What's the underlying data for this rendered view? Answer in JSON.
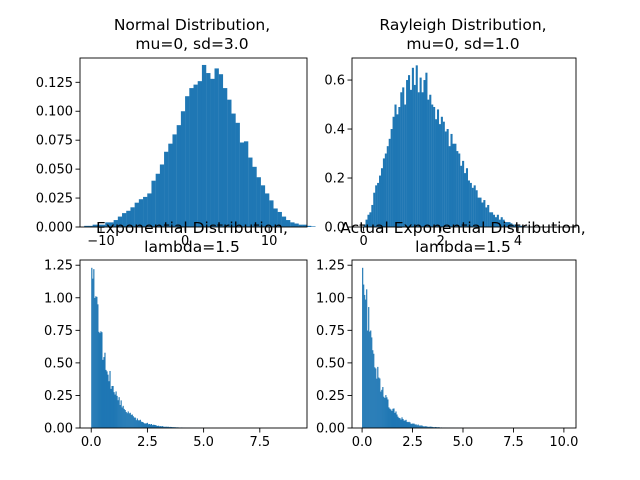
{
  "chart_data": [
    {
      "type": "bar",
      "title": "Normal Distribution,\nmu=0, sd=3.0",
      "xlabel": "",
      "ylabel": "",
      "xlim": [
        -12.5,
        14.5
      ],
      "ylim": [
        0,
        0.146
      ],
      "xticks": [
        -10,
        0,
        10
      ],
      "xtick_labels": [
        "−10",
        "0",
        "10"
      ],
      "yticks": [
        0,
        0.025,
        0.05,
        0.075,
        0.1,
        0.125
      ],
      "ytick_labels": [
        "0.000",
        "0.025",
        "0.050",
        "0.075",
        "0.100",
        "0.125"
      ],
      "color": "#1f77b4",
      "bin_start": -12,
      "bin_width": 0.5,
      "values": [
        0.001,
        0.001,
        0.002,
        0.002,
        0.002,
        0.004,
        0.004,
        0.006,
        0.009,
        0.012,
        0.014,
        0.017,
        0.021,
        0.024,
        0.026,
        0.029,
        0.04,
        0.046,
        0.054,
        0.065,
        0.072,
        0.08,
        0.088,
        0.1,
        0.113,
        0.12,
        0.123,
        0.126,
        0.14,
        0.133,
        0.128,
        0.137,
        0.132,
        0.12,
        0.11,
        0.098,
        0.09,
        0.073,
        0.074,
        0.06,
        0.052,
        0.043,
        0.036,
        0.029,
        0.023,
        0.016,
        0.013,
        0.009,
        0.006,
        0.004,
        0.003,
        0.002,
        0.002,
        0.001,
        0.0005
      ]
    },
    {
      "type": "bar",
      "title": "Rayleigh Distribution,\nmu=0, sd=1.0",
      "xlabel": "",
      "ylabel": "",
      "xlim": [
        -0.3,
        5.5
      ],
      "ylim": [
        0,
        0.69
      ],
      "xticks": [
        0,
        2,
        4
      ],
      "xtick_labels": [
        "0",
        "2",
        "4"
      ],
      "yticks": [
        0,
        0.2,
        0.4,
        0.6
      ],
      "ytick_labels": [
        "0.0",
        "0.2",
        "0.4",
        "0.6"
      ],
      "color": "#1f77b4",
      "bin_start": 0,
      "bin_width": 0.05,
      "values": [
        0.01,
        0.03,
        0.05,
        0.06,
        0.09,
        0.14,
        0.17,
        0.18,
        0.21,
        0.24,
        0.28,
        0.3,
        0.33,
        0.36,
        0.4,
        0.45,
        0.5,
        0.46,
        0.49,
        0.55,
        0.57,
        0.5,
        0.6,
        0.62,
        0.56,
        0.65,
        0.58,
        0.66,
        0.55,
        0.61,
        0.55,
        0.6,
        0.63,
        0.52,
        0.54,
        0.5,
        0.49,
        0.44,
        0.48,
        0.42,
        0.45,
        0.43,
        0.39,
        0.4,
        0.33,
        0.38,
        0.34,
        0.34,
        0.31,
        0.3,
        0.25,
        0.27,
        0.22,
        0.24,
        0.19,
        0.18,
        0.16,
        0.17,
        0.15,
        0.12,
        0.12,
        0.1,
        0.11,
        0.08,
        0.09,
        0.06,
        0.06,
        0.05,
        0.04,
        0.05,
        0.03,
        0.04,
        0.03,
        0.02,
        0.02,
        0.02,
        0.015,
        0.01,
        0.01,
        0.008,
        0.005,
        0.005,
        0.004,
        0.003,
        0.002,
        0.002,
        0.001,
        0.001,
        0.001,
        0.001
      ]
    },
    {
      "type": "bar",
      "title": "Exponential Distribution,\nlambda=1.5",
      "xlabel": "",
      "ylabel": "",
      "xlim": [
        -0.5,
        9.6
      ],
      "ylim": [
        0,
        1.29
      ],
      "xticks": [
        0,
        2.5,
        5,
        7.5
      ],
      "xtick_labels": [
        "0.0",
        "2.5",
        "5.0",
        "7.5"
      ],
      "yticks": [
        0,
        0.25,
        0.5,
        0.75,
        1.0,
        1.25
      ],
      "ytick_labels": [
        "0.00",
        "0.25",
        "0.50",
        "0.75",
        "1.00",
        "1.25"
      ],
      "color": "#1f77b4",
      "decay_rate": 1.45,
      "bin_width": 0.045,
      "x_max": 9.1,
      "peak": 1.23
    },
    {
      "type": "bar",
      "title": "Actual Exponential Distribution,\nlambda=1.5",
      "xlabel": "",
      "ylabel": "",
      "xlim": [
        -0.5,
        10.6
      ],
      "ylim": [
        0,
        1.29
      ],
      "xticks": [
        0,
        2.5,
        5,
        7.5,
        10
      ],
      "xtick_labels": [
        "0.0",
        "2.5",
        "5.0",
        "7.5",
        "10.0"
      ],
      "yticks": [
        0,
        0.25,
        0.5,
        0.75,
        1.0,
        1.25
      ],
      "ytick_labels": [
        "0.00",
        "0.25",
        "0.50",
        "0.75",
        "1.00",
        "1.25"
      ],
      "color": "#1f77b4",
      "decay_rate": 1.45,
      "bin_width": 0.05,
      "x_max": 10.1,
      "peak": 1.23
    }
  ]
}
